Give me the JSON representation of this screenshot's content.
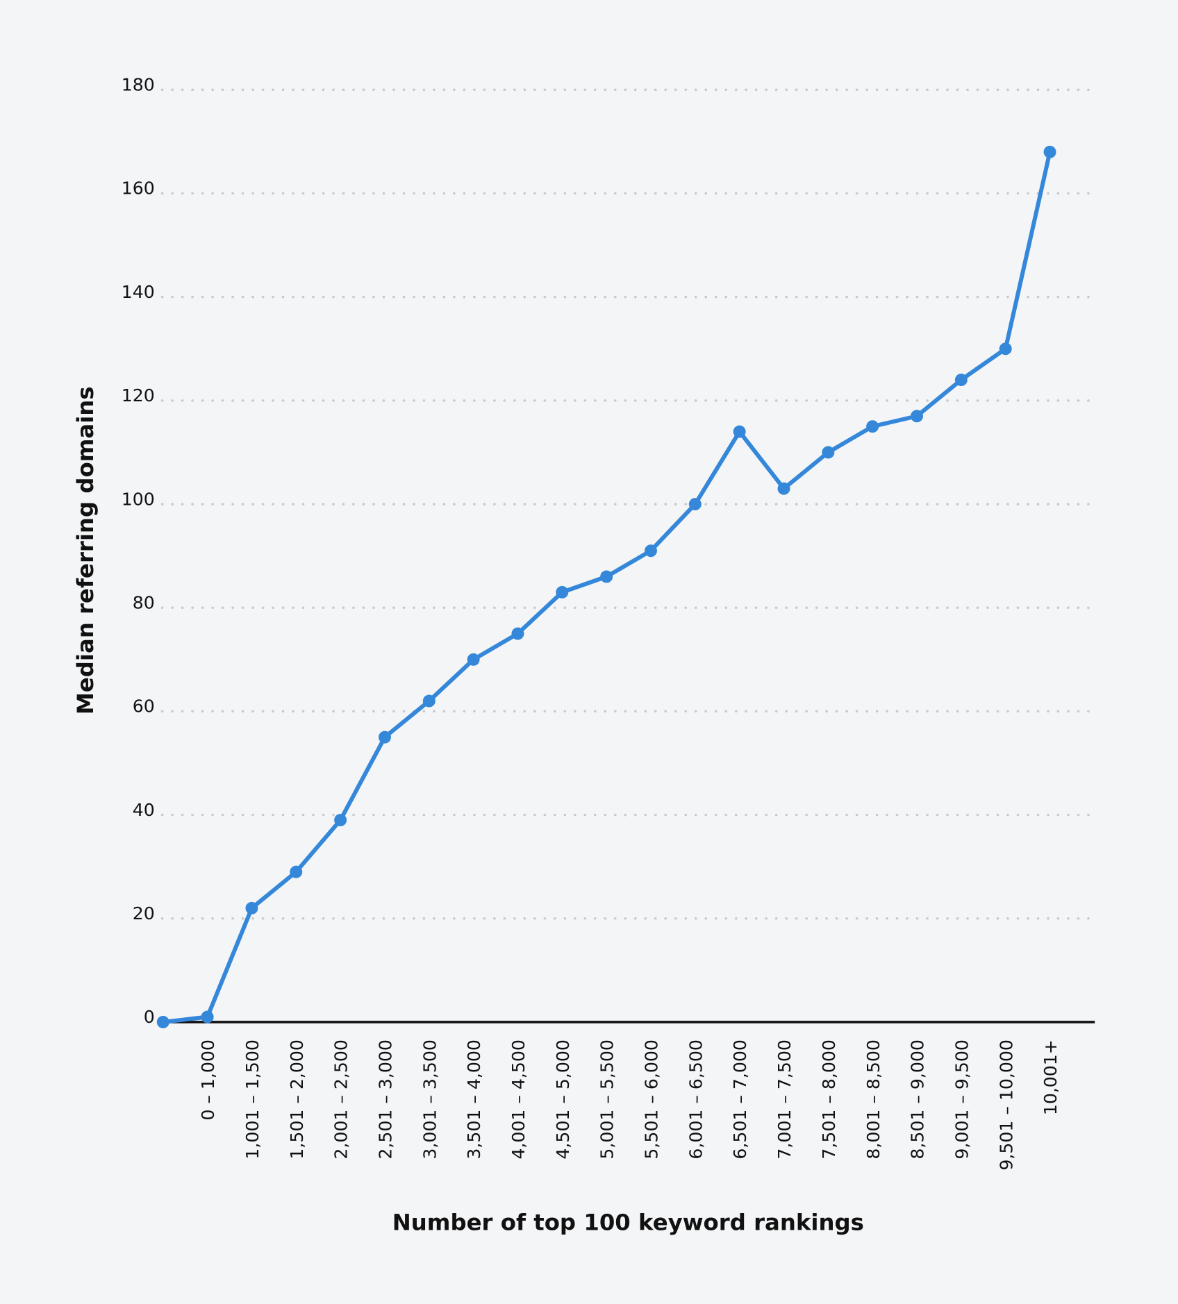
{
  "chart_data": {
    "type": "line",
    "title": "",
    "xlabel": "Number of top 100 keyword rankings",
    "ylabel": "Median referring domains",
    "ylim": [
      0,
      180
    ],
    "yticks": [
      0,
      20,
      40,
      60,
      80,
      100,
      120,
      140,
      160,
      180
    ],
    "grid": true,
    "grid_style": "dotted horizontal",
    "line_color": "#3487d9",
    "categories": [
      "",
      "0 – 1,000",
      "1,001 – 1,500",
      "1,501 – 2,000",
      "2,001 – 2,500",
      "2,501 – 3,000",
      "3,001 – 3,500",
      "3,501 – 4,000",
      "4,001 – 4,500",
      "4,501 – 5,000",
      "5,001 – 5,500",
      "5,501 – 6,000",
      "6,001 – 6,500",
      "6,501 – 7,000",
      "7,001 – 7,500",
      "7,501 – 8,000",
      "8,001 – 8,500",
      "8,501 – 9,000",
      "9,001 – 9,500",
      "9,501 – 10,000",
      "10,001+"
    ],
    "values": [
      0,
      1,
      22,
      29,
      39,
      55,
      62,
      70,
      75,
      83,
      86,
      91,
      100,
      114,
      103,
      110,
      115,
      117,
      124,
      130,
      168
    ]
  }
}
